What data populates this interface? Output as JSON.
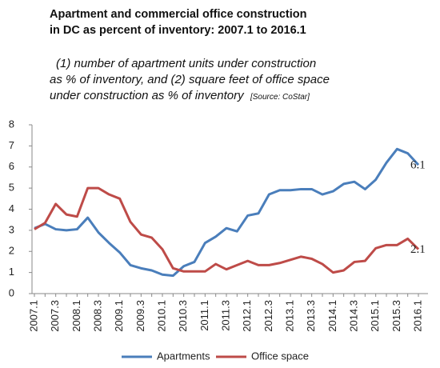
{
  "chart_data": {
    "type": "line",
    "title": "Apartment and commercial office construction in DC as percent of inventory: 2007.1 to 2016.1",
    "subtitle": "(1) number of apartment units under construction as % of inventory, and (2) square feet of office space under construction as % of inventory",
    "source": "[Source: CoStar]",
    "categories": [
      "2007.1",
      null,
      "2007.3",
      null,
      "2008.1",
      null,
      "2008.3",
      null,
      "2009.1",
      null,
      "2009.3",
      null,
      "2010.1",
      null,
      "2010.3",
      null,
      "2011.1",
      null,
      "2011.3",
      null,
      "2012.1",
      null,
      "2012.3",
      null,
      "2013.1",
      null,
      "2013.3",
      null,
      "2014.1",
      null,
      "2014.3",
      null,
      "2015.1",
      null,
      "2015.3",
      null,
      "2016.1"
    ],
    "series": [
      {
        "name": "Apartments",
        "color": "#4a7ebb",
        "label_last": true,
        "values": [
          3.1,
          3.3,
          3.05,
          3.0,
          3.05,
          3.6,
          2.9,
          2.4,
          1.95,
          1.35,
          1.2,
          1.1,
          0.9,
          0.85,
          1.3,
          1.5,
          2.4,
          2.7,
          3.1,
          2.95,
          3.7,
          3.8,
          4.7,
          4.9,
          4.9,
          4.95,
          4.95,
          4.7,
          4.85,
          5.2,
          5.3,
          4.95,
          5.4,
          6.2,
          6.85,
          6.65,
          6.1
        ]
      },
      {
        "name": "Office space",
        "color": "#be4b48",
        "label_last": true,
        "values": [
          3.05,
          3.35,
          4.25,
          3.75,
          3.65,
          5.0,
          5.0,
          4.7,
          4.5,
          3.4,
          2.8,
          2.65,
          2.1,
          1.2,
          1.05,
          1.05,
          1.05,
          1.4,
          1.15,
          1.35,
          1.55,
          1.35,
          1.35,
          1.45,
          1.6,
          1.75,
          1.65,
          1.4,
          1.0,
          1.1,
          1.5,
          1.55,
          2.15,
          2.3,
          2.3,
          2.6,
          2.1
        ]
      }
    ],
    "ylim": [
      0,
      8
    ],
    "yticks": [
      0,
      1,
      2,
      3,
      4,
      5,
      6,
      7,
      8
    ],
    "grid": false,
    "legend": "bottom"
  }
}
